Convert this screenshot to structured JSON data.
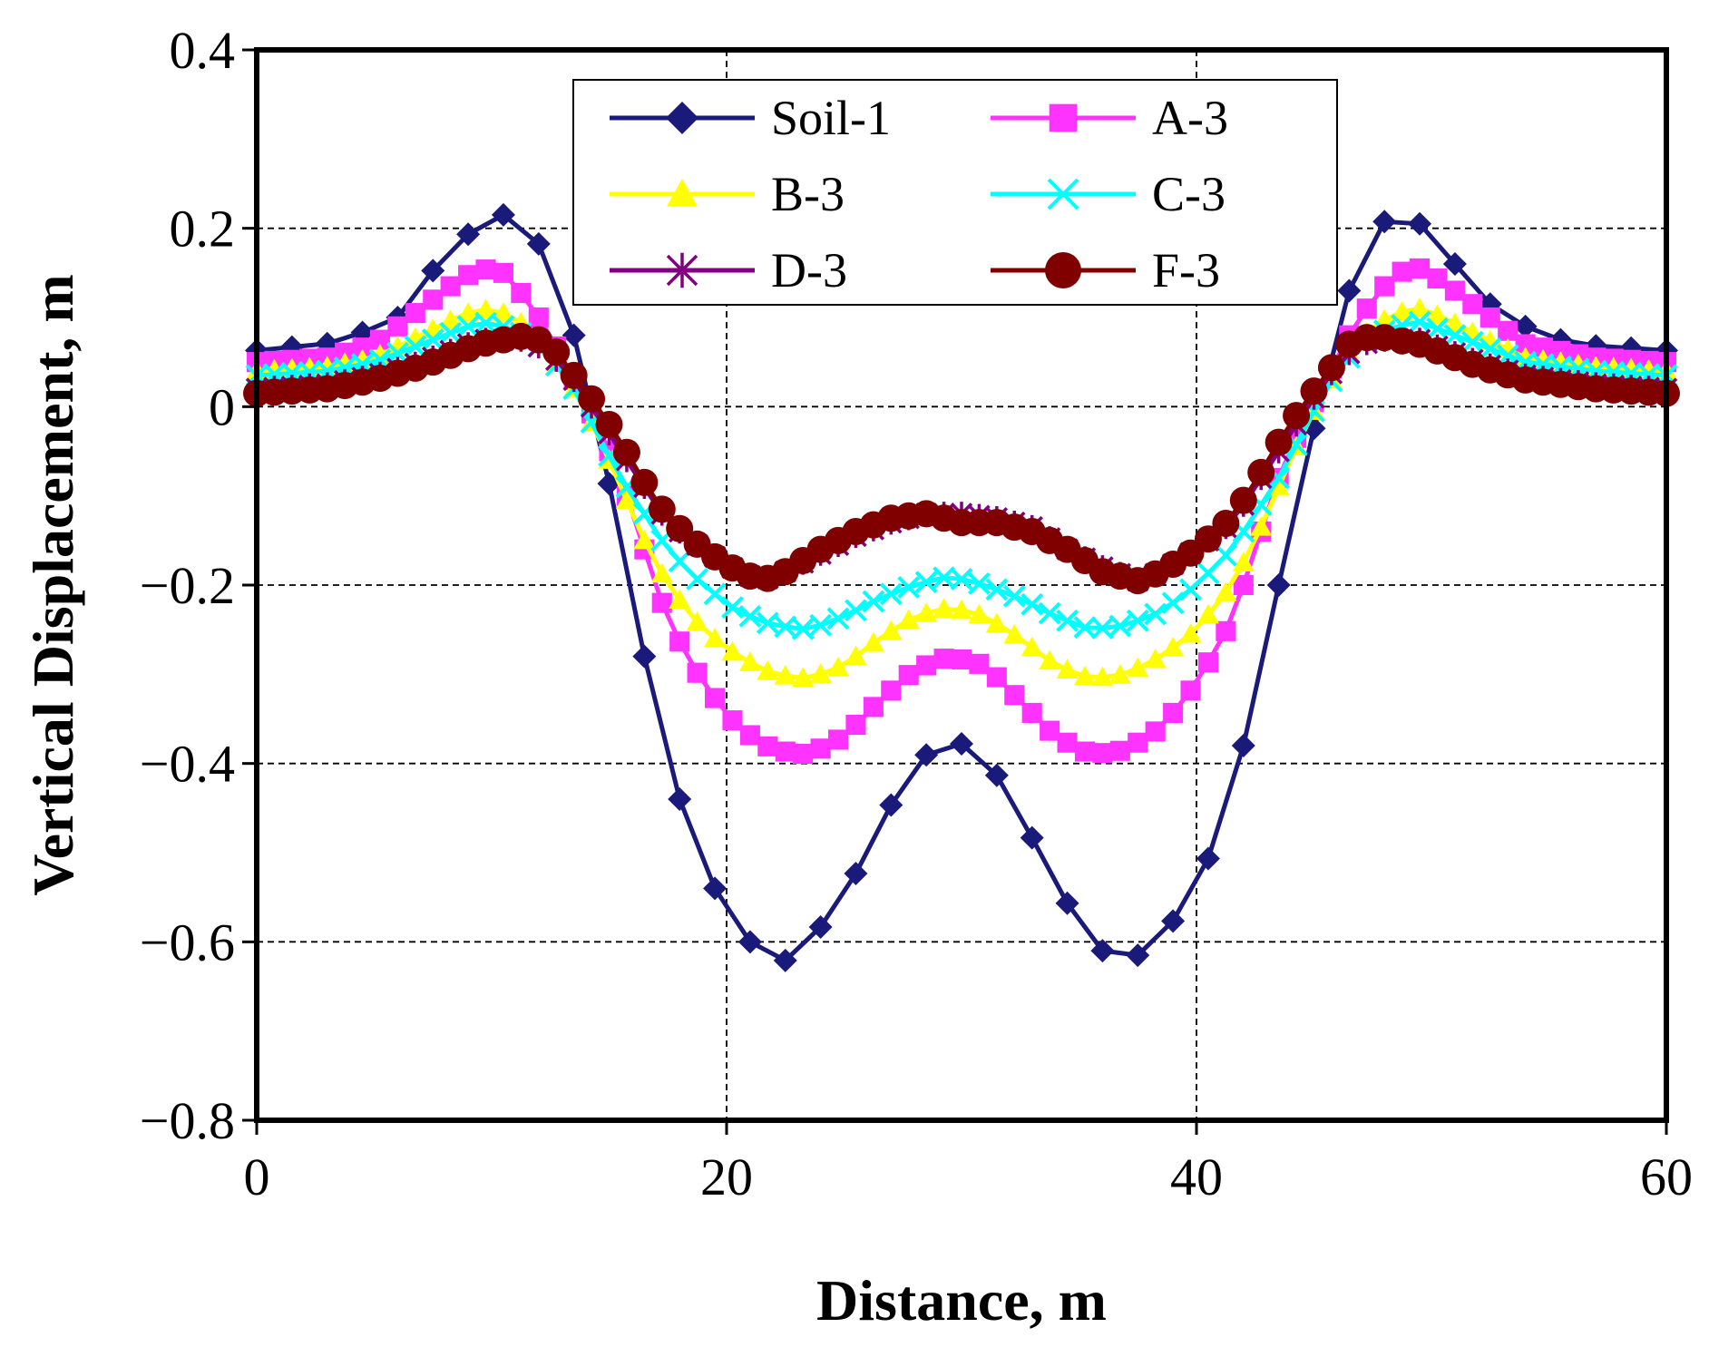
{
  "chart_data": {
    "type": "line",
    "title": "",
    "xlabel": "Distance, m",
    "ylabel": "Vertical Displacement, m",
    "xlim": [
      0,
      60
    ],
    "ylim": [
      -0.8,
      0.4
    ],
    "xticks": [
      0,
      20,
      40,
      60
    ],
    "yticks": [
      0.4,
      0.2,
      0,
      -0.2,
      -0.4,
      -0.6,
      -0.8
    ],
    "xtick_labels": [
      "0",
      "20",
      "40",
      "60"
    ],
    "ytick_labels": [
      "0.4",
      "0.2",
      "0",
      "−0.2",
      "−0.4",
      "−0.6",
      "−0.8"
    ],
    "grid": true,
    "legend_position": "top-center",
    "series": [
      {
        "name": "Soil-1",
        "color": "#1a1a7a",
        "marker": "diamond",
        "key": [
          [
            0,
            0.063
          ],
          [
            3.5,
            0.072
          ],
          [
            6,
            0.1
          ],
          [
            8,
            0.17
          ],
          [
            9.5,
            0.205
          ],
          [
            10.5,
            0.215
          ],
          [
            11.5,
            0.205
          ],
          [
            12.5,
            0.16
          ],
          [
            13.5,
            0.08
          ],
          [
            14.5,
            -0.03
          ],
          [
            15.3,
            -0.12
          ],
          [
            16,
            -0.22
          ],
          [
            17,
            -0.34
          ],
          [
            18,
            -0.44
          ],
          [
            19.5,
            -0.54
          ],
          [
            21,
            -0.6
          ],
          [
            22.3,
            -0.625
          ],
          [
            23.5,
            -0.6
          ],
          [
            25,
            -0.55
          ],
          [
            26.5,
            -0.47
          ],
          [
            28,
            -0.4
          ],
          [
            29.3,
            -0.375
          ],
          [
            30.5,
            -0.38
          ],
          [
            32,
            -0.43
          ],
          [
            33.5,
            -0.51
          ],
          [
            35,
            -0.58
          ],
          [
            36.5,
            -0.625
          ],
          [
            38,
            -0.61
          ],
          [
            39.5,
            -0.56
          ],
          [
            41,
            -0.48
          ],
          [
            42,
            -0.38
          ],
          [
            43,
            -0.26
          ],
          [
            44,
            -0.14
          ],
          [
            44.8,
            -0.05
          ],
          [
            45.5,
            0.04
          ],
          [
            46.5,
            0.13
          ],
          [
            47.5,
            0.2
          ],
          [
            48.5,
            0.215
          ],
          [
            49.5,
            0.205
          ],
          [
            51,
            0.16
          ],
          [
            53,
            0.1
          ],
          [
            56,
            0.07
          ],
          [
            60,
            0.063
          ]
        ]
      },
      {
        "name": "A-3",
        "color": "#ff33ff",
        "marker": "square",
        "key": [
          [
            0,
            0.05
          ],
          [
            3,
            0.055
          ],
          [
            5,
            0.07
          ],
          [
            7,
            0.11
          ],
          [
            8.5,
            0.14
          ],
          [
            9.5,
            0.155
          ],
          [
            10.5,
            0.15
          ],
          [
            11.5,
            0.12
          ],
          [
            12.5,
            0.08
          ],
          [
            13.5,
            0.03
          ],
          [
            14.5,
            -0.02
          ],
          [
            15.5,
            -0.08
          ],
          [
            16.5,
            -0.16
          ],
          [
            17.5,
            -0.24
          ],
          [
            19,
            -0.31
          ],
          [
            20.5,
            -0.36
          ],
          [
            22,
            -0.385
          ],
          [
            23.5,
            -0.39
          ],
          [
            25,
            -0.37
          ],
          [
            26.5,
            -0.33
          ],
          [
            28,
            -0.295
          ],
          [
            29.5,
            -0.28
          ],
          [
            31,
            -0.29
          ],
          [
            32.5,
            -0.33
          ],
          [
            34,
            -0.37
          ],
          [
            35.5,
            -0.39
          ],
          [
            37,
            -0.385
          ],
          [
            38.5,
            -0.36
          ],
          [
            40,
            -0.31
          ],
          [
            41.5,
            -0.24
          ],
          [
            42.5,
            -0.16
          ],
          [
            43.5,
            -0.08
          ],
          [
            44.5,
            -0.02
          ],
          [
            45.5,
            0.03
          ],
          [
            46.5,
            0.08
          ],
          [
            47.5,
            0.12
          ],
          [
            48.5,
            0.15
          ],
          [
            49.5,
            0.155
          ],
          [
            50.5,
            0.14
          ],
          [
            52,
            0.11
          ],
          [
            54,
            0.07
          ],
          [
            57,
            0.055
          ],
          [
            60,
            0.05
          ]
        ]
      },
      {
        "name": "B-3",
        "color": "#ffff00",
        "marker": "triangle",
        "key": [
          [
            0,
            0.04
          ],
          [
            3,
            0.045
          ],
          [
            5,
            0.055
          ],
          [
            7,
            0.08
          ],
          [
            8.5,
            0.1
          ],
          [
            9.5,
            0.11
          ],
          [
            10.5,
            0.105
          ],
          [
            11.5,
            0.09
          ],
          [
            12.5,
            0.06
          ],
          [
            13.5,
            0.02
          ],
          [
            14.5,
            -0.03
          ],
          [
            15.5,
            -0.09
          ],
          [
            16.5,
            -0.15
          ],
          [
            17.5,
            -0.2
          ],
          [
            19,
            -0.25
          ],
          [
            20.5,
            -0.28
          ],
          [
            22,
            -0.3
          ],
          [
            23.5,
            -0.305
          ],
          [
            25,
            -0.29
          ],
          [
            26.5,
            -0.26
          ],
          [
            28,
            -0.235
          ],
          [
            29.5,
            -0.225
          ],
          [
            31,
            -0.235
          ],
          [
            32.5,
            -0.26
          ],
          [
            34,
            -0.29
          ],
          [
            35.5,
            -0.305
          ],
          [
            37,
            -0.3
          ],
          [
            38.5,
            -0.28
          ],
          [
            40,
            -0.25
          ],
          [
            41.5,
            -0.2
          ],
          [
            42.5,
            -0.15
          ],
          [
            43.5,
            -0.09
          ],
          [
            44.5,
            -0.03
          ],
          [
            45.5,
            0.02
          ],
          [
            46.5,
            0.06
          ],
          [
            47.5,
            0.09
          ],
          [
            48.5,
            0.105
          ],
          [
            49.5,
            0.11
          ],
          [
            50.5,
            0.1
          ],
          [
            52,
            0.08
          ],
          [
            54,
            0.055
          ],
          [
            57,
            0.045
          ],
          [
            60,
            0.04
          ]
        ]
      },
      {
        "name": "C-3",
        "color": "#00ffff",
        "marker": "x",
        "key": [
          [
            0,
            0.035
          ],
          [
            3,
            0.04
          ],
          [
            5,
            0.05
          ],
          [
            7,
            0.07
          ],
          [
            8.5,
            0.085
          ],
          [
            9.5,
            0.095
          ],
          [
            10.5,
            0.09
          ],
          [
            11.5,
            0.08
          ],
          [
            12.5,
            0.055
          ],
          [
            13.5,
            0.02
          ],
          [
            14.5,
            -0.03
          ],
          [
            15.5,
            -0.08
          ],
          [
            16.5,
            -0.12
          ],
          [
            17.5,
            -0.16
          ],
          [
            19,
            -0.2
          ],
          [
            20.5,
            -0.23
          ],
          [
            22,
            -0.245
          ],
          [
            23.5,
            -0.25
          ],
          [
            25,
            -0.235
          ],
          [
            26.5,
            -0.215
          ],
          [
            28,
            -0.2
          ],
          [
            29.5,
            -0.19
          ],
          [
            31,
            -0.2
          ],
          [
            32.5,
            -0.215
          ],
          [
            34,
            -0.235
          ],
          [
            35.5,
            -0.25
          ],
          [
            37,
            -0.245
          ],
          [
            38.5,
            -0.23
          ],
          [
            40,
            -0.2
          ],
          [
            41.5,
            -0.16
          ],
          [
            42.5,
            -0.12
          ],
          [
            43.5,
            -0.08
          ],
          [
            44.5,
            -0.03
          ],
          [
            45.5,
            0.02
          ],
          [
            46.5,
            0.055
          ],
          [
            47.5,
            0.08
          ],
          [
            48.5,
            0.09
          ],
          [
            49.5,
            0.095
          ],
          [
            50.5,
            0.085
          ],
          [
            52,
            0.07
          ],
          [
            54,
            0.05
          ],
          [
            57,
            0.04
          ],
          [
            60,
            0.035
          ]
        ]
      },
      {
        "name": "D-3",
        "color": "#800080",
        "marker": "star",
        "key": [
          [
            0,
            0.02
          ],
          [
            3,
            0.025
          ],
          [
            5,
            0.035
          ],
          [
            7,
            0.05
          ],
          [
            8.5,
            0.065
          ],
          [
            9.5,
            0.075
          ],
          [
            10.5,
            0.075
          ],
          [
            11.5,
            0.075
          ],
          [
            12.5,
            0.06
          ],
          [
            13.5,
            0.03
          ],
          [
            14.5,
            -0.01
          ],
          [
            15.5,
            -0.05
          ],
          [
            16.5,
            -0.09
          ],
          [
            17.5,
            -0.13
          ],
          [
            19,
            -0.16
          ],
          [
            20.5,
            -0.185
          ],
          [
            21.5,
            -0.195
          ],
          [
            22.5,
            -0.185
          ],
          [
            24,
            -0.165
          ],
          [
            25.5,
            -0.145
          ],
          [
            27,
            -0.13
          ],
          [
            28.5,
            -0.12
          ],
          [
            30,
            -0.12
          ],
          [
            31.5,
            -0.125
          ],
          [
            33,
            -0.135
          ],
          [
            34.5,
            -0.16
          ],
          [
            36,
            -0.18
          ],
          [
            37.5,
            -0.195
          ],
          [
            38.5,
            -0.185
          ],
          [
            40,
            -0.16
          ],
          [
            41.5,
            -0.13
          ],
          [
            42.5,
            -0.09
          ],
          [
            43.5,
            -0.05
          ],
          [
            44.5,
            -0.01
          ],
          [
            45.5,
            0.03
          ],
          [
            46.5,
            0.06
          ],
          [
            47.5,
            0.075
          ],
          [
            48.5,
            0.075
          ],
          [
            49.5,
            0.075
          ],
          [
            50.5,
            0.065
          ],
          [
            52,
            0.05
          ],
          [
            54,
            0.035
          ],
          [
            57,
            0.025
          ],
          [
            60,
            0.02
          ]
        ]
      },
      {
        "name": "F-3",
        "color": "#800000",
        "marker": "circle",
        "key": [
          [
            0,
            0.015
          ],
          [
            3,
            0.02
          ],
          [
            5,
            0.03
          ],
          [
            7,
            0.045
          ],
          [
            8.5,
            0.06
          ],
          [
            9.5,
            0.07
          ],
          [
            10.5,
            0.075
          ],
          [
            11.5,
            0.08
          ],
          [
            12.5,
            0.07
          ],
          [
            13.5,
            0.035
          ],
          [
            14.5,
            0.0
          ],
          [
            15.5,
            -0.04
          ],
          [
            16.5,
            -0.085
          ],
          [
            17.5,
            -0.125
          ],
          [
            19,
            -0.16
          ],
          [
            20.5,
            -0.185
          ],
          [
            21.5,
            -0.195
          ],
          [
            22.5,
            -0.185
          ],
          [
            24,
            -0.16
          ],
          [
            25.5,
            -0.14
          ],
          [
            27,
            -0.125
          ],
          [
            28.5,
            -0.12
          ],
          [
            30,
            -0.13
          ],
          [
            31.5,
            -0.13
          ],
          [
            33,
            -0.14
          ],
          [
            34.5,
            -0.16
          ],
          [
            36,
            -0.185
          ],
          [
            37.5,
            -0.195
          ],
          [
            38.5,
            -0.185
          ],
          [
            40,
            -0.16
          ],
          [
            41.5,
            -0.125
          ],
          [
            42.5,
            -0.085
          ],
          [
            43.5,
            -0.04
          ],
          [
            44.5,
            0.0
          ],
          [
            45.5,
            0.035
          ],
          [
            46.5,
            0.07
          ],
          [
            47.5,
            0.08
          ],
          [
            48.5,
            0.075
          ],
          [
            49.5,
            0.07
          ],
          [
            50.5,
            0.06
          ],
          [
            52,
            0.045
          ],
          [
            54,
            0.03
          ],
          [
            57,
            0.02
          ],
          [
            60,
            0.015
          ]
        ]
      }
    ]
  }
}
